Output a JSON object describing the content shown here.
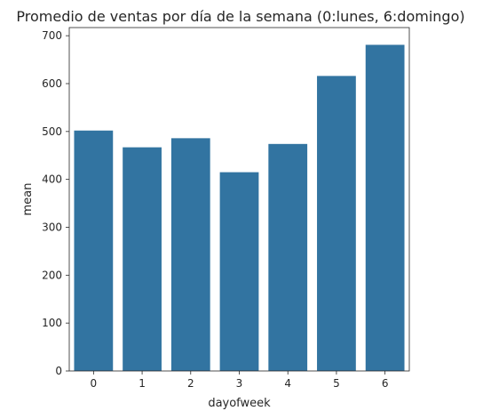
{
  "chart_data": {
    "type": "bar",
    "title": "Promedio de ventas por día de la semana (0:lunes, 6:domingo)",
    "xlabel": "dayofweek",
    "ylabel": "mean",
    "categories": [
      "0",
      "1",
      "2",
      "3",
      "4",
      "5",
      "6"
    ],
    "values": [
      502,
      467,
      486,
      415,
      474,
      616,
      681
    ],
    "ylim": [
      0,
      717
    ],
    "yticks": [
      0,
      100,
      200,
      300,
      400,
      500,
      600,
      700
    ],
    "bar_color": "#3274a1",
    "grid": false
  }
}
